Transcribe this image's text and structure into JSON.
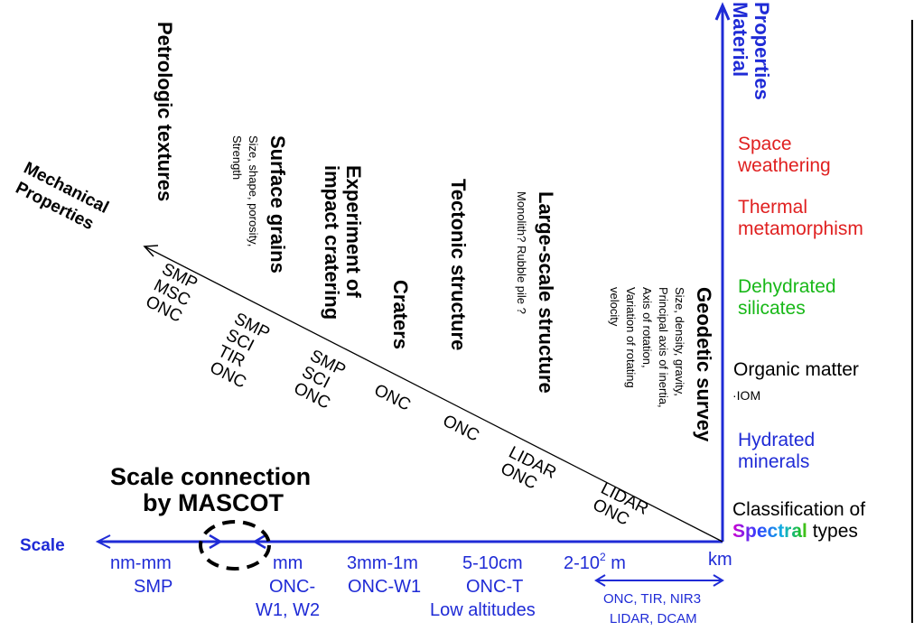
{
  "axes": {
    "material_properties": "Material Properties",
    "mechanical_properties": "Mechanical Properties",
    "scale": "Scale"
  },
  "material_list": {
    "space_weathering": "Space weathering",
    "thermal_metamorphism": "Thermal metamorphism",
    "dehydrated_silicates": "Dehydrated silicates",
    "organic_matter": "Organic matter",
    "iom": "IOM",
    "hydrated_minerals": "Hydrated minerals",
    "classification_prefix": "Classification of",
    "spectral_word": "Spectral",
    "types_word": "types"
  },
  "topics": [
    {
      "title": "Petrologic textures",
      "detail": ""
    },
    {
      "title": "Surface grains",
      "detail": "Size, shape, porosity, Strength"
    },
    {
      "title": "Experiment of impact cratering",
      "detail": ""
    },
    {
      "title": "Craters",
      "detail": ""
    },
    {
      "title": "Tectonic structure",
      "detail": ""
    },
    {
      "title": "Large-scale structure",
      "detail": "Monolith?  Rubble pile ?"
    },
    {
      "title": "Geodetic survey",
      "detail": "Size, density, gravity, Principal axis of inertia, Axis of rotation, Variation of rotating velocity"
    }
  ],
  "instruments_on_line": [
    [
      "SMP",
      "MSC",
      "ONC"
    ],
    [
      "SMP",
      "SCI",
      "TIR",
      "ONC"
    ],
    [
      "SMP",
      "SCI",
      "ONC"
    ],
    [
      "ONC"
    ],
    [
      "ONC"
    ],
    [
      "LIDAR",
      "ONC"
    ],
    [
      "LIDAR",
      "ONC"
    ]
  ],
  "scale_connection": {
    "line1": "Scale connection",
    "line2": "by MASCOT"
  },
  "scale_bins": [
    {
      "range": "nm-mm",
      "instrument": "SMP"
    },
    {
      "range": "mm",
      "instrument": "ONC-",
      "instrument2": "W1, W2"
    },
    {
      "range": "3mm-1m",
      "instrument": "ONC-W1"
    },
    {
      "range": "5-10cm",
      "instrument": "ONC-T",
      "instrument2": "Low altitudes"
    },
    {
      "range_prefix": "2-10",
      "range_sup": "2",
      "range_suffix": " m"
    },
    {
      "range": "km"
    }
  ],
  "range_arrow_label": {
    "line1": "ONC, TIR, NIR3",
    "line2": "LIDAR, DCAM"
  },
  "colors": {
    "blue": "#1f2bd6",
    "red": "#e02020",
    "green": "#18b818",
    "black": "#000000",
    "spectral_gradient": [
      "#d000d0",
      "#3040ff",
      "#10b0e0",
      "#20c020",
      "#e0c000",
      "#ff8000",
      "#e02020"
    ]
  }
}
